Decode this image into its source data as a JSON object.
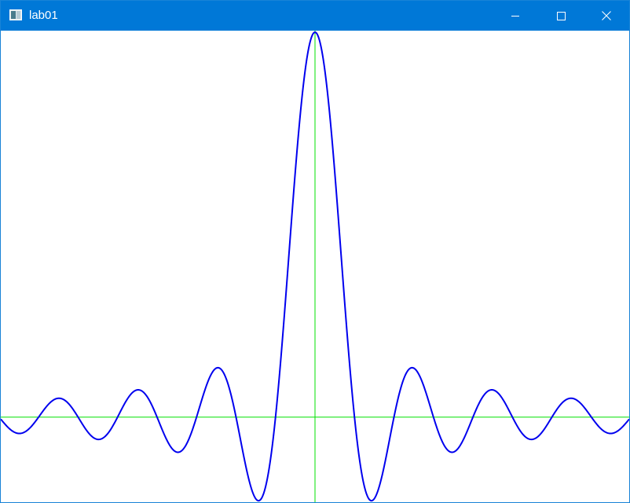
{
  "window": {
    "title": "lab01",
    "controls": {
      "minimize": "minimize-icon",
      "maximize": "maximize-icon",
      "close": "close-icon"
    },
    "colors": {
      "titlebar": "#0078d7",
      "title_text": "#ffffff",
      "client_background": "#ffffff"
    }
  },
  "chart_data": {
    "type": "line",
    "title": "",
    "xlabel": "",
    "ylabel": "",
    "grid": false,
    "axes_color": "#00e000",
    "series": [
      {
        "function": "sin(x)/x",
        "color": "#0000ee",
        "x_range": [
          -25,
          25
        ],
        "ylim": [
          -0.217,
          1.0
        ]
      }
    ]
  }
}
